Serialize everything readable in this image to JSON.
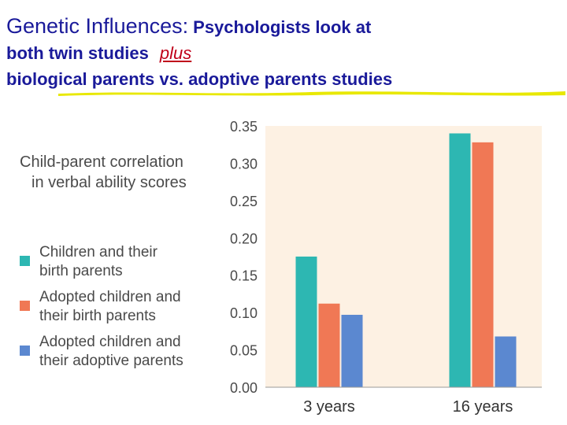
{
  "header": {
    "line1_main": "Genetic Influences:",
    "line1_tail": "Psychologists look at",
    "line2_main": "both twin studies",
    "line2_plus": "plus",
    "line3": "biological parents vs. adoptive parents studies"
  },
  "colors": {
    "title": "#1a1a9a",
    "plus": "#c0001a",
    "plot_bg": "#fdf1e3",
    "underline": "#e8e800"
  },
  "chart_data": {
    "type": "bar",
    "title": "",
    "ylabel": "Child-parent correlation in verbal ability scores",
    "ylabel_line1": "Child-parent correlation",
    "ylabel_line2": "in verbal ability scores",
    "xlabel": "",
    "categories": [
      "3 years",
      "16 years"
    ],
    "ylim": [
      0,
      0.35
    ],
    "yticks": [
      "0.00",
      "0.05",
      "0.10",
      "0.15",
      "0.20",
      "0.25",
      "0.30",
      "0.35"
    ],
    "grid": false,
    "legend_position": "left",
    "series": [
      {
        "name": "Children and their birth parents",
        "name_line1": "Children and their",
        "name_line2": "birth parents",
        "color": "#2db7b2",
        "values": [
          0.175,
          0.34
        ]
      },
      {
        "name": "Adopted children and their birth parents",
        "name_line1": "Adopted children and",
        "name_line2": "their birth parents",
        "color": "#f07855",
        "values": [
          0.112,
          0.328
        ]
      },
      {
        "name": "Adopted children and their adoptive parents",
        "name_line1": "Adopted children and",
        "name_line2": "their adoptive parents",
        "color": "#5b88d0",
        "values": [
          0.097,
          0.068
        ]
      }
    ]
  }
}
